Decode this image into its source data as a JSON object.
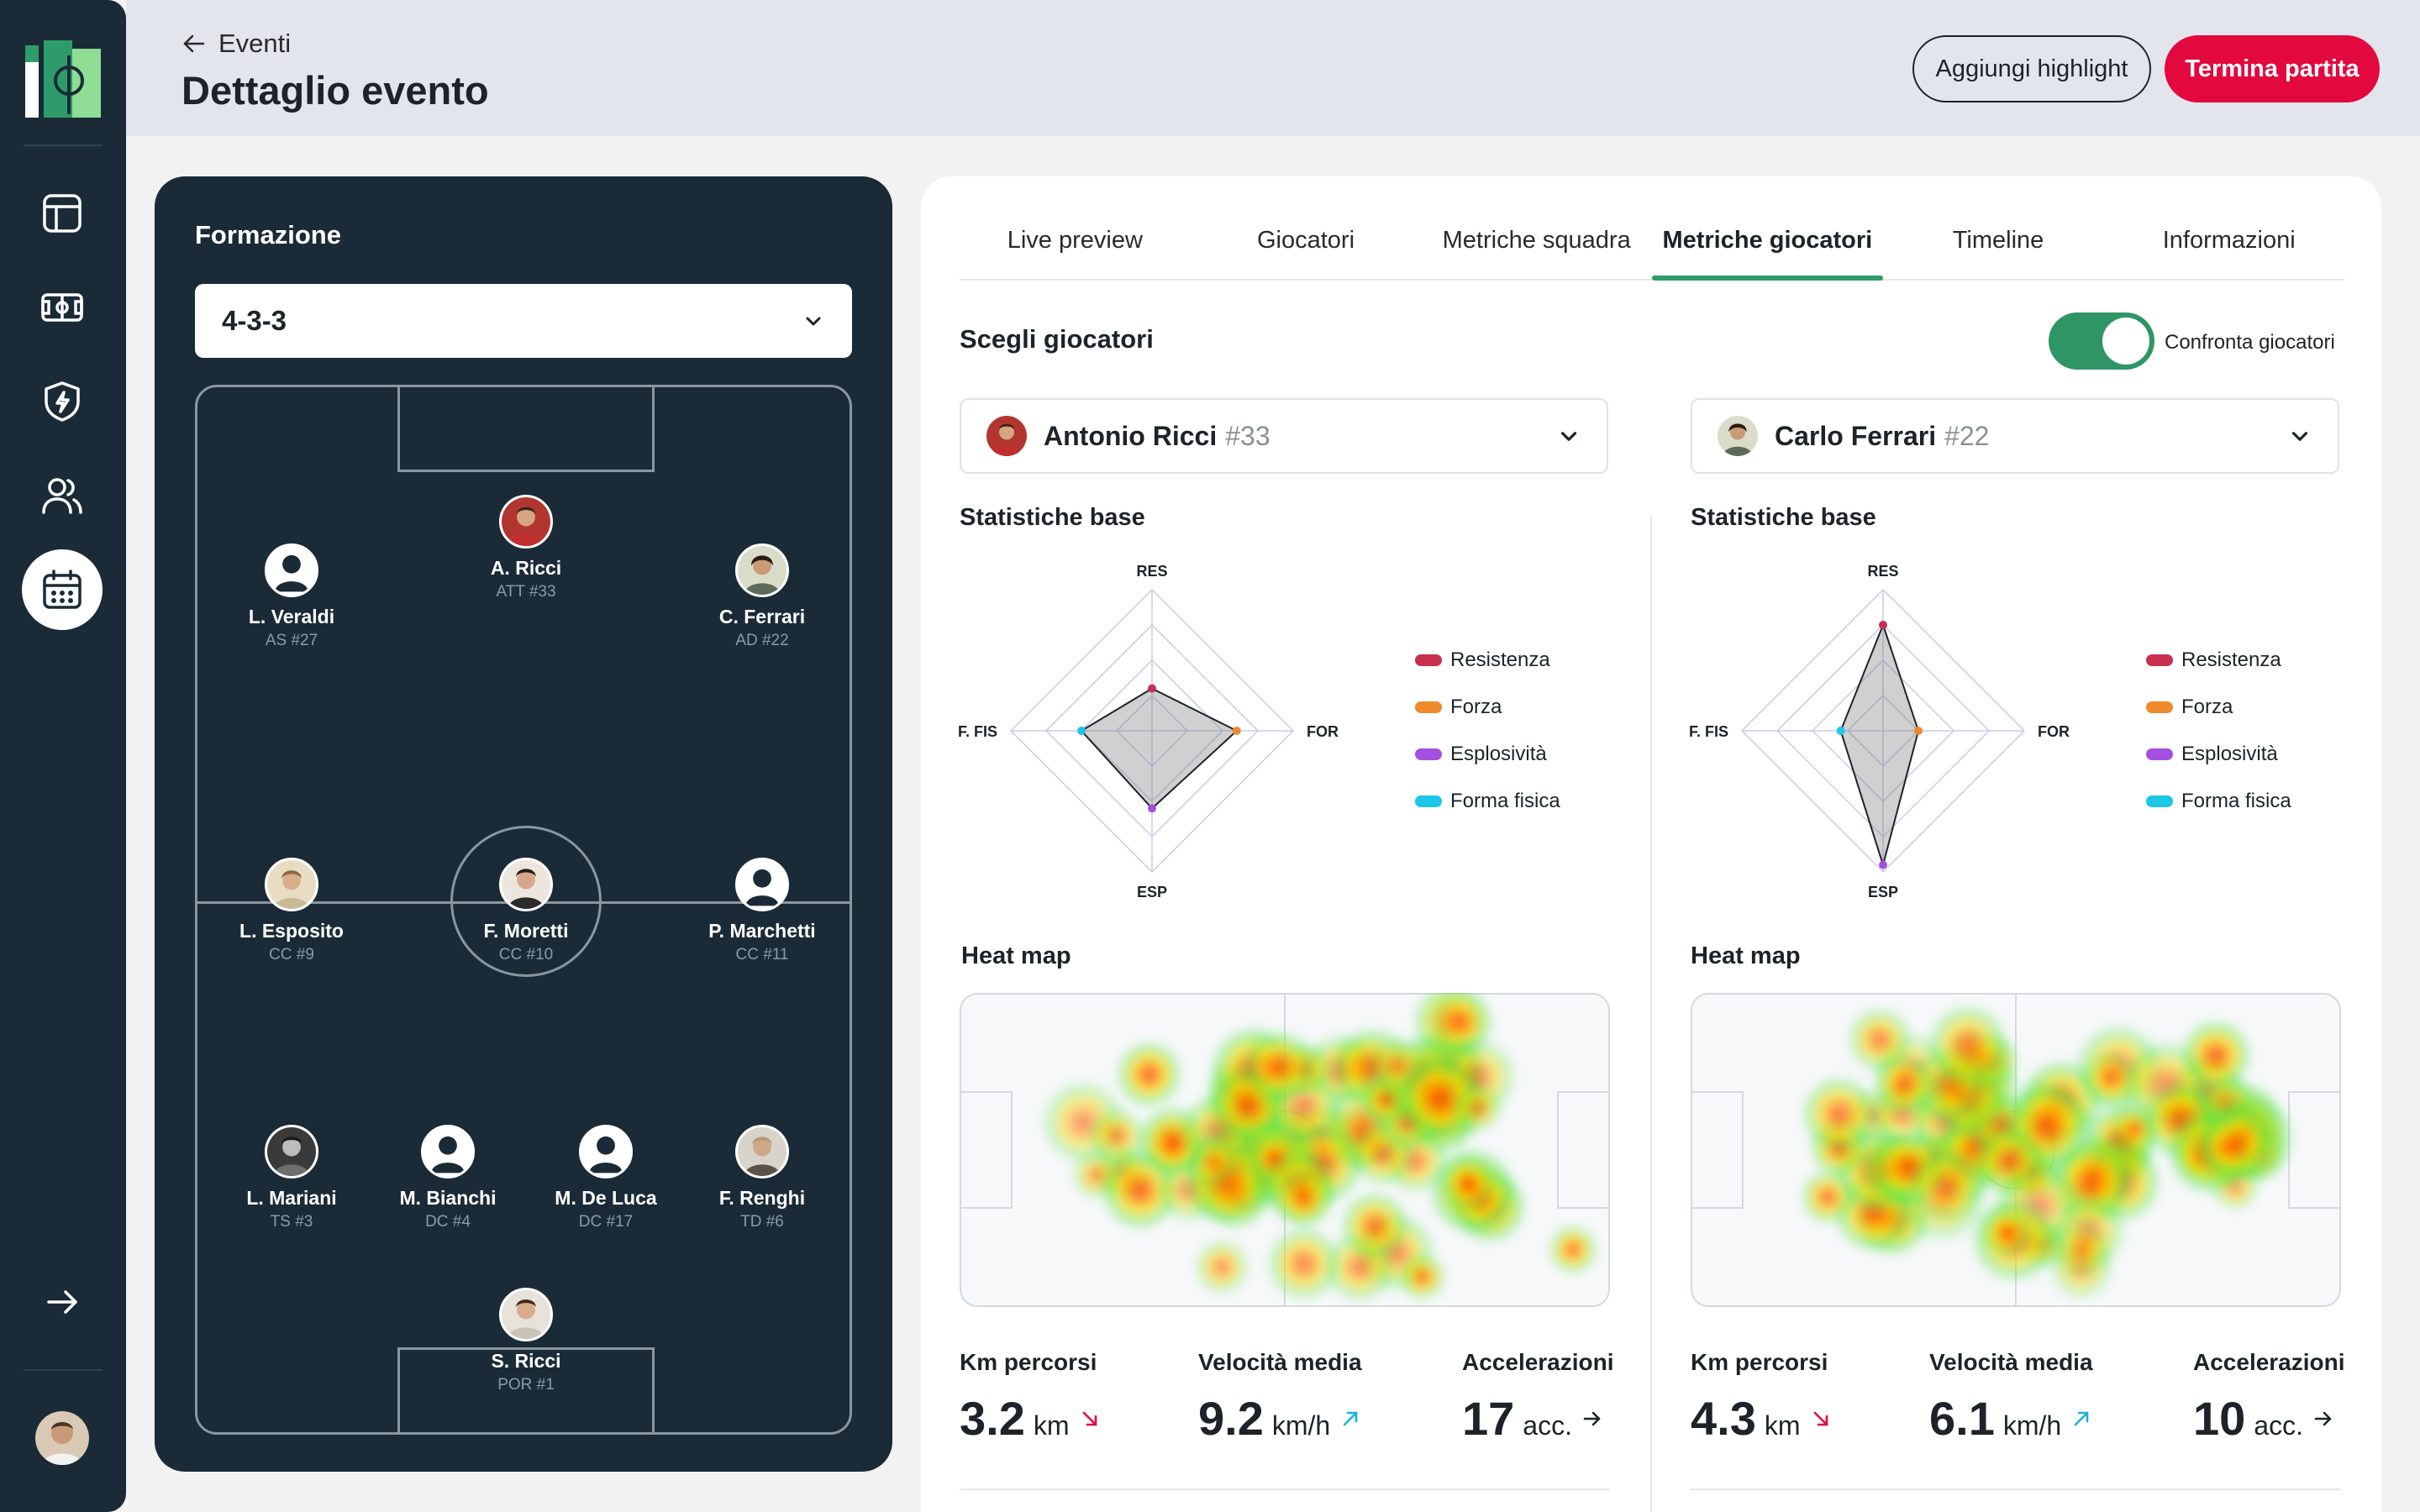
{
  "header": {
    "back_label": "Eventi",
    "title": "Dettaglio evento",
    "highlight_button": "Aggiungi highlight",
    "end_button": "Termina partita"
  },
  "sidebar": {
    "items": [
      {
        "icon": "dashboard-icon"
      },
      {
        "icon": "pitch-icon"
      },
      {
        "icon": "shield-icon"
      },
      {
        "icon": "users-icon"
      },
      {
        "icon": "calendar-icon",
        "active": true
      }
    ],
    "collapse_icon": "arrow-right-icon"
  },
  "formation": {
    "title": "Formazione",
    "selected": "4-3-3",
    "players": {
      "ricci_a": {
        "name": "A. Ricci",
        "role": "ATT #33"
      },
      "veraldi": {
        "name": "L. Veraldi",
        "role": "AS #27"
      },
      "ferrari": {
        "name": "C. Ferrari",
        "role": "AD #22"
      },
      "esposito": {
        "name": "L. Esposito",
        "role": "CC #9"
      },
      "moretti": {
        "name": "F. Moretti",
        "role": "CC #10"
      },
      "marchetti": {
        "name": "P. Marchetti",
        "role": "CC #11"
      },
      "mariani": {
        "name": "L. Mariani",
        "role": "TS #3"
      },
      "bianchi": {
        "name": "M. Bianchi",
        "role": "DC #4"
      },
      "deluca": {
        "name": "M. De Luca",
        "role": "DC #17"
      },
      "renghi": {
        "name": "F. Renghi",
        "role": "TD #6"
      },
      "ricci_s": {
        "name": "S. Ricci",
        "role": "POR #1"
      }
    }
  },
  "tabs": [
    "Live preview",
    "Giocatori",
    "Metriche squadra",
    "Metriche giocatori",
    "Timeline",
    "Informazioni"
  ],
  "active_tab": "Metriche giocatori",
  "compare": {
    "title": "Scegli giocatori",
    "toggle_label": "Confronta giocatori",
    "toggle_on": true
  },
  "left_player": {
    "name": "Antonio Ricci",
    "number": "#33",
    "base_title": "Statistiche base",
    "heat_title": "Heat map",
    "radar": {
      "RES": 0.3,
      "FOR": 0.6,
      "ESP": 0.55,
      "F. FIS": 0.5
    },
    "stats": {
      "km_label": "Km percorsi",
      "km_value": "3.2",
      "km_unit": "km",
      "km_trend": "down",
      "speed_label": "Velocità media",
      "speed_value": "9.2",
      "speed_unit": "km/h",
      "speed_trend": "up",
      "acc_label": "Accelerazioni",
      "acc_value": "17",
      "acc_unit": "acc.",
      "acc_trend": "flat"
    }
  },
  "right_player": {
    "name": "Carlo Ferrari",
    "number": "#22",
    "base_title": "Statistiche base",
    "heat_title": "Heat map",
    "radar": {
      "RES": 0.75,
      "FOR": 0.25,
      "ESP": 0.95,
      "F. FIS": 0.3
    },
    "stats": {
      "km_label": "Km percorsi",
      "km_value": "4.3",
      "km_unit": "km",
      "km_trend": "down",
      "speed_label": "Velocità media",
      "speed_value": "6.1",
      "speed_unit": "km/h",
      "speed_trend": "up",
      "acc_label": "Accelerazioni",
      "acc_value": "10",
      "acc_unit": "acc.",
      "acc_trend": "flat"
    }
  },
  "radar_axes": [
    "RES",
    "FOR",
    "ESP",
    "F. FIS"
  ],
  "legend": [
    {
      "label": "Resistenza",
      "color": "#c8304f"
    },
    {
      "label": "Forza",
      "color": "#ef8a2a"
    },
    {
      "label": "Esplosività",
      "color": "#a44fe0"
    },
    {
      "label": "Forma fisica",
      "color": "#1cc6e6"
    }
  ],
  "colors": {
    "accent_green": "#2e9c6a",
    "danger_red": "#e3093f",
    "navy": "#1a2b37"
  }
}
